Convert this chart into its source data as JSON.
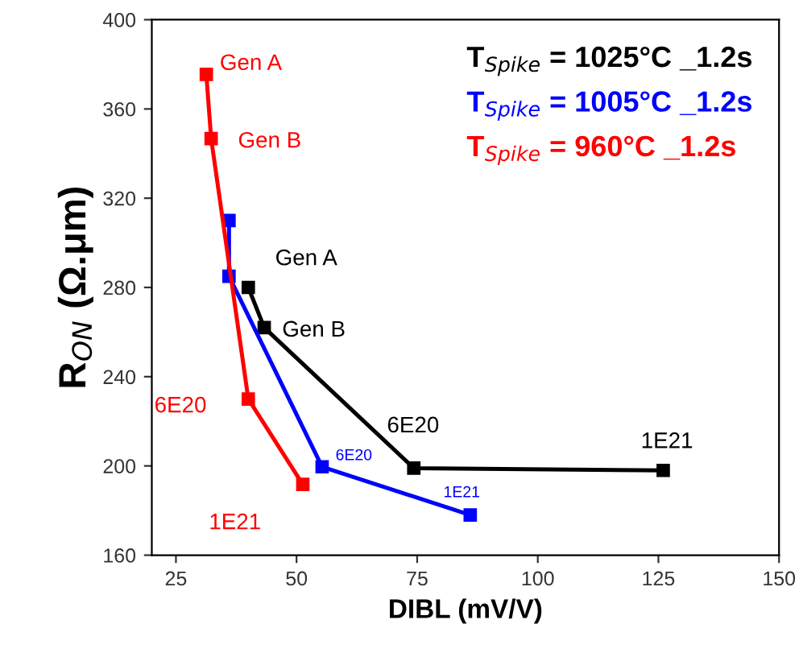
{
  "chart_data": {
    "type": "line",
    "xlabel": "DIBL (mV/V)",
    "ylabel": "R$_{ON}$ (Ω.μm)",
    "xlim": [
      20,
      150
    ],
    "xticks": [
      25,
      50,
      75,
      100,
      125,
      150
    ],
    "ylim": [
      160,
      400
    ],
    "yticks": [
      160,
      200,
      240,
      280,
      320,
      360,
      400
    ],
    "grid": false,
    "legend": "top right",
    "marker": "square",
    "line_style": "solid",
    "series": [
      {
        "name": "T$_{Spike}$ = 1025°C _1.2s",
        "color": "#000000",
        "x": [
          40,
          43.3,
          74.3,
          126
        ],
        "values": [
          280,
          262,
          199,
          198
        ]
      },
      {
        "name": "T$_{Spike}$ = 1005°C _1.2s",
        "color": "#0000ff",
        "x": [
          36,
          36,
          55.3,
          86
        ],
        "values": [
          310,
          285,
          199.6,
          178
        ]
      },
      {
        "name": "T$_{Spike}$ = 960°C _1.2s",
        "color": "#ff0000",
        "x": [
          31.3,
          32.3,
          40,
          51.3
        ],
        "values": [
          375.5,
          346.7,
          230,
          191.7
        ]
      }
    ],
    "annotations": [
      {
        "text": "Gen A",
        "x": 31.3,
        "y": 375.5
      },
      {
        "text": "Gen B",
        "x": 32.3,
        "y": 346.7
      },
      {
        "text": "6E20",
        "x": 40,
        "y": 230
      },
      {
        "text": "1E21",
        "x": 51.3,
        "y": 191.7
      },
      {
        "text": "6E20",
        "x": 55.3,
        "y": 199.6
      },
      {
        "text": "1E21",
        "x": 86,
        "y": 178
      },
      {
        "text": "Gen A",
        "x": 40,
        "y": 280
      },
      {
        "text": "Gen B",
        "x": 43.3,
        "y": 262
      },
      {
        "text": "6E20",
        "x": 74.3,
        "y": 199
      },
      {
        "text": "1E21",
        "x": 126,
        "y": 198
      }
    ]
  }
}
